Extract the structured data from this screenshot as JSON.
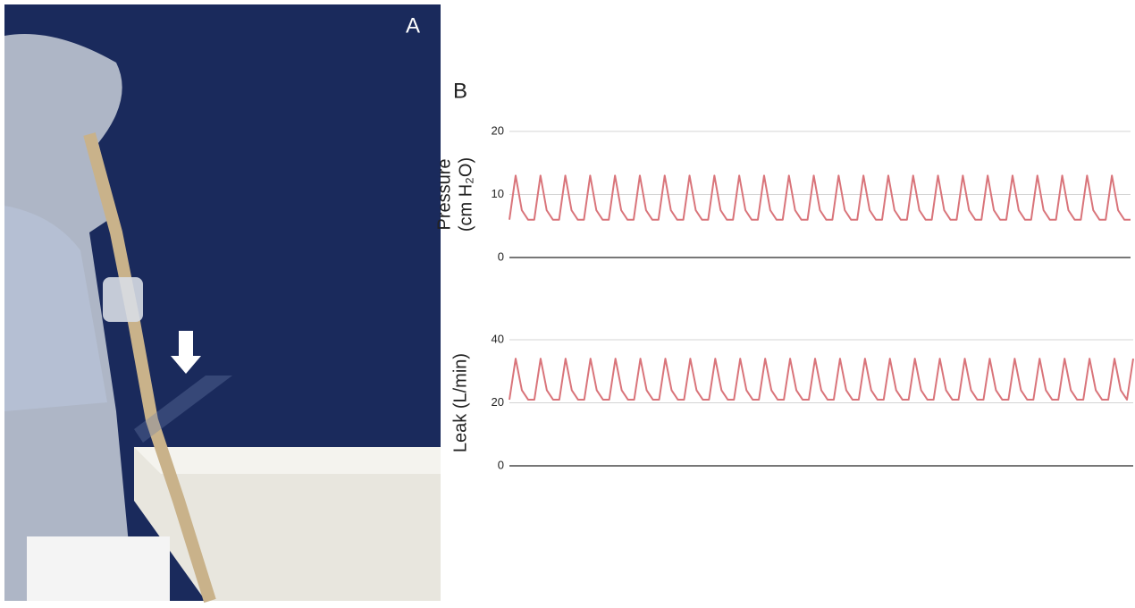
{
  "panel_labels": [
    "A",
    "B"
  ],
  "chart_data": [
    {
      "type": "line",
      "ylabel": [
        "Pressure",
        "(cm H₂O)"
      ],
      "ylim": [
        0,
        20
      ],
      "yticks": [
        0,
        10,
        20
      ],
      "grid": true,
      "series": [
        {
          "color": "#d9747a",
          "values": [
            6,
            13,
            7.5,
            6,
            6,
            13,
            7.5,
            6,
            6,
            13,
            7.5,
            6,
            6,
            13,
            7.5,
            6,
            6,
            13,
            7.5,
            6,
            6,
            13,
            7.5,
            6,
            6,
            13,
            7.5,
            6,
            6,
            13,
            7.5,
            6,
            6,
            13,
            7.5,
            6,
            6,
            13,
            7.5,
            6,
            6,
            13,
            7.5,
            6,
            6,
            13,
            7.5,
            6,
            6,
            13,
            7.5,
            6,
            6,
            13,
            7.5,
            6,
            6,
            13,
            7.5,
            6,
            6,
            13,
            7.5,
            6,
            6,
            13,
            7.5,
            6,
            6,
            13,
            7.5,
            6,
            6,
            13,
            7.5,
            6,
            6,
            13,
            7.5,
            6,
            6,
            13,
            7.5,
            6,
            6,
            13,
            7.5,
            6,
            6,
            13,
            7.5,
            6,
            6,
            13,
            7.5,
            6,
            6,
            13,
            7.5,
            6,
            6
          ]
        }
      ]
    },
    {
      "type": "line",
      "ylabel": [
        "Leak (L/min)"
      ],
      "ylim": [
        0,
        40
      ],
      "yticks": [
        0,
        20,
        40
      ],
      "grid": true,
      "series": [
        {
          "color": "#d9747a",
          "values": [
            21,
            34,
            24,
            21,
            21,
            34,
            24,
            21,
            21,
            34,
            24,
            21,
            21,
            34,
            24,
            21,
            21,
            34,
            24,
            21,
            21,
            34,
            24,
            21,
            21,
            34,
            24,
            21,
            21,
            34,
            24,
            21,
            21,
            34,
            24,
            21,
            21,
            34,
            24,
            21,
            21,
            34,
            24,
            21,
            21,
            34,
            24,
            21,
            21,
            34,
            24,
            21,
            21,
            34,
            24,
            21,
            21,
            34,
            24,
            21,
            21,
            34,
            24,
            21,
            21,
            34,
            24,
            21,
            21,
            34,
            24,
            21,
            21,
            34,
            24,
            21,
            21,
            34,
            24,
            21,
            21,
            34,
            24,
            21,
            21,
            34,
            24,
            21,
            21,
            34,
            24,
            21,
            21,
            34,
            24,
            21,
            21,
            34,
            24,
            21,
            34
          ]
        }
      ]
    }
  ]
}
